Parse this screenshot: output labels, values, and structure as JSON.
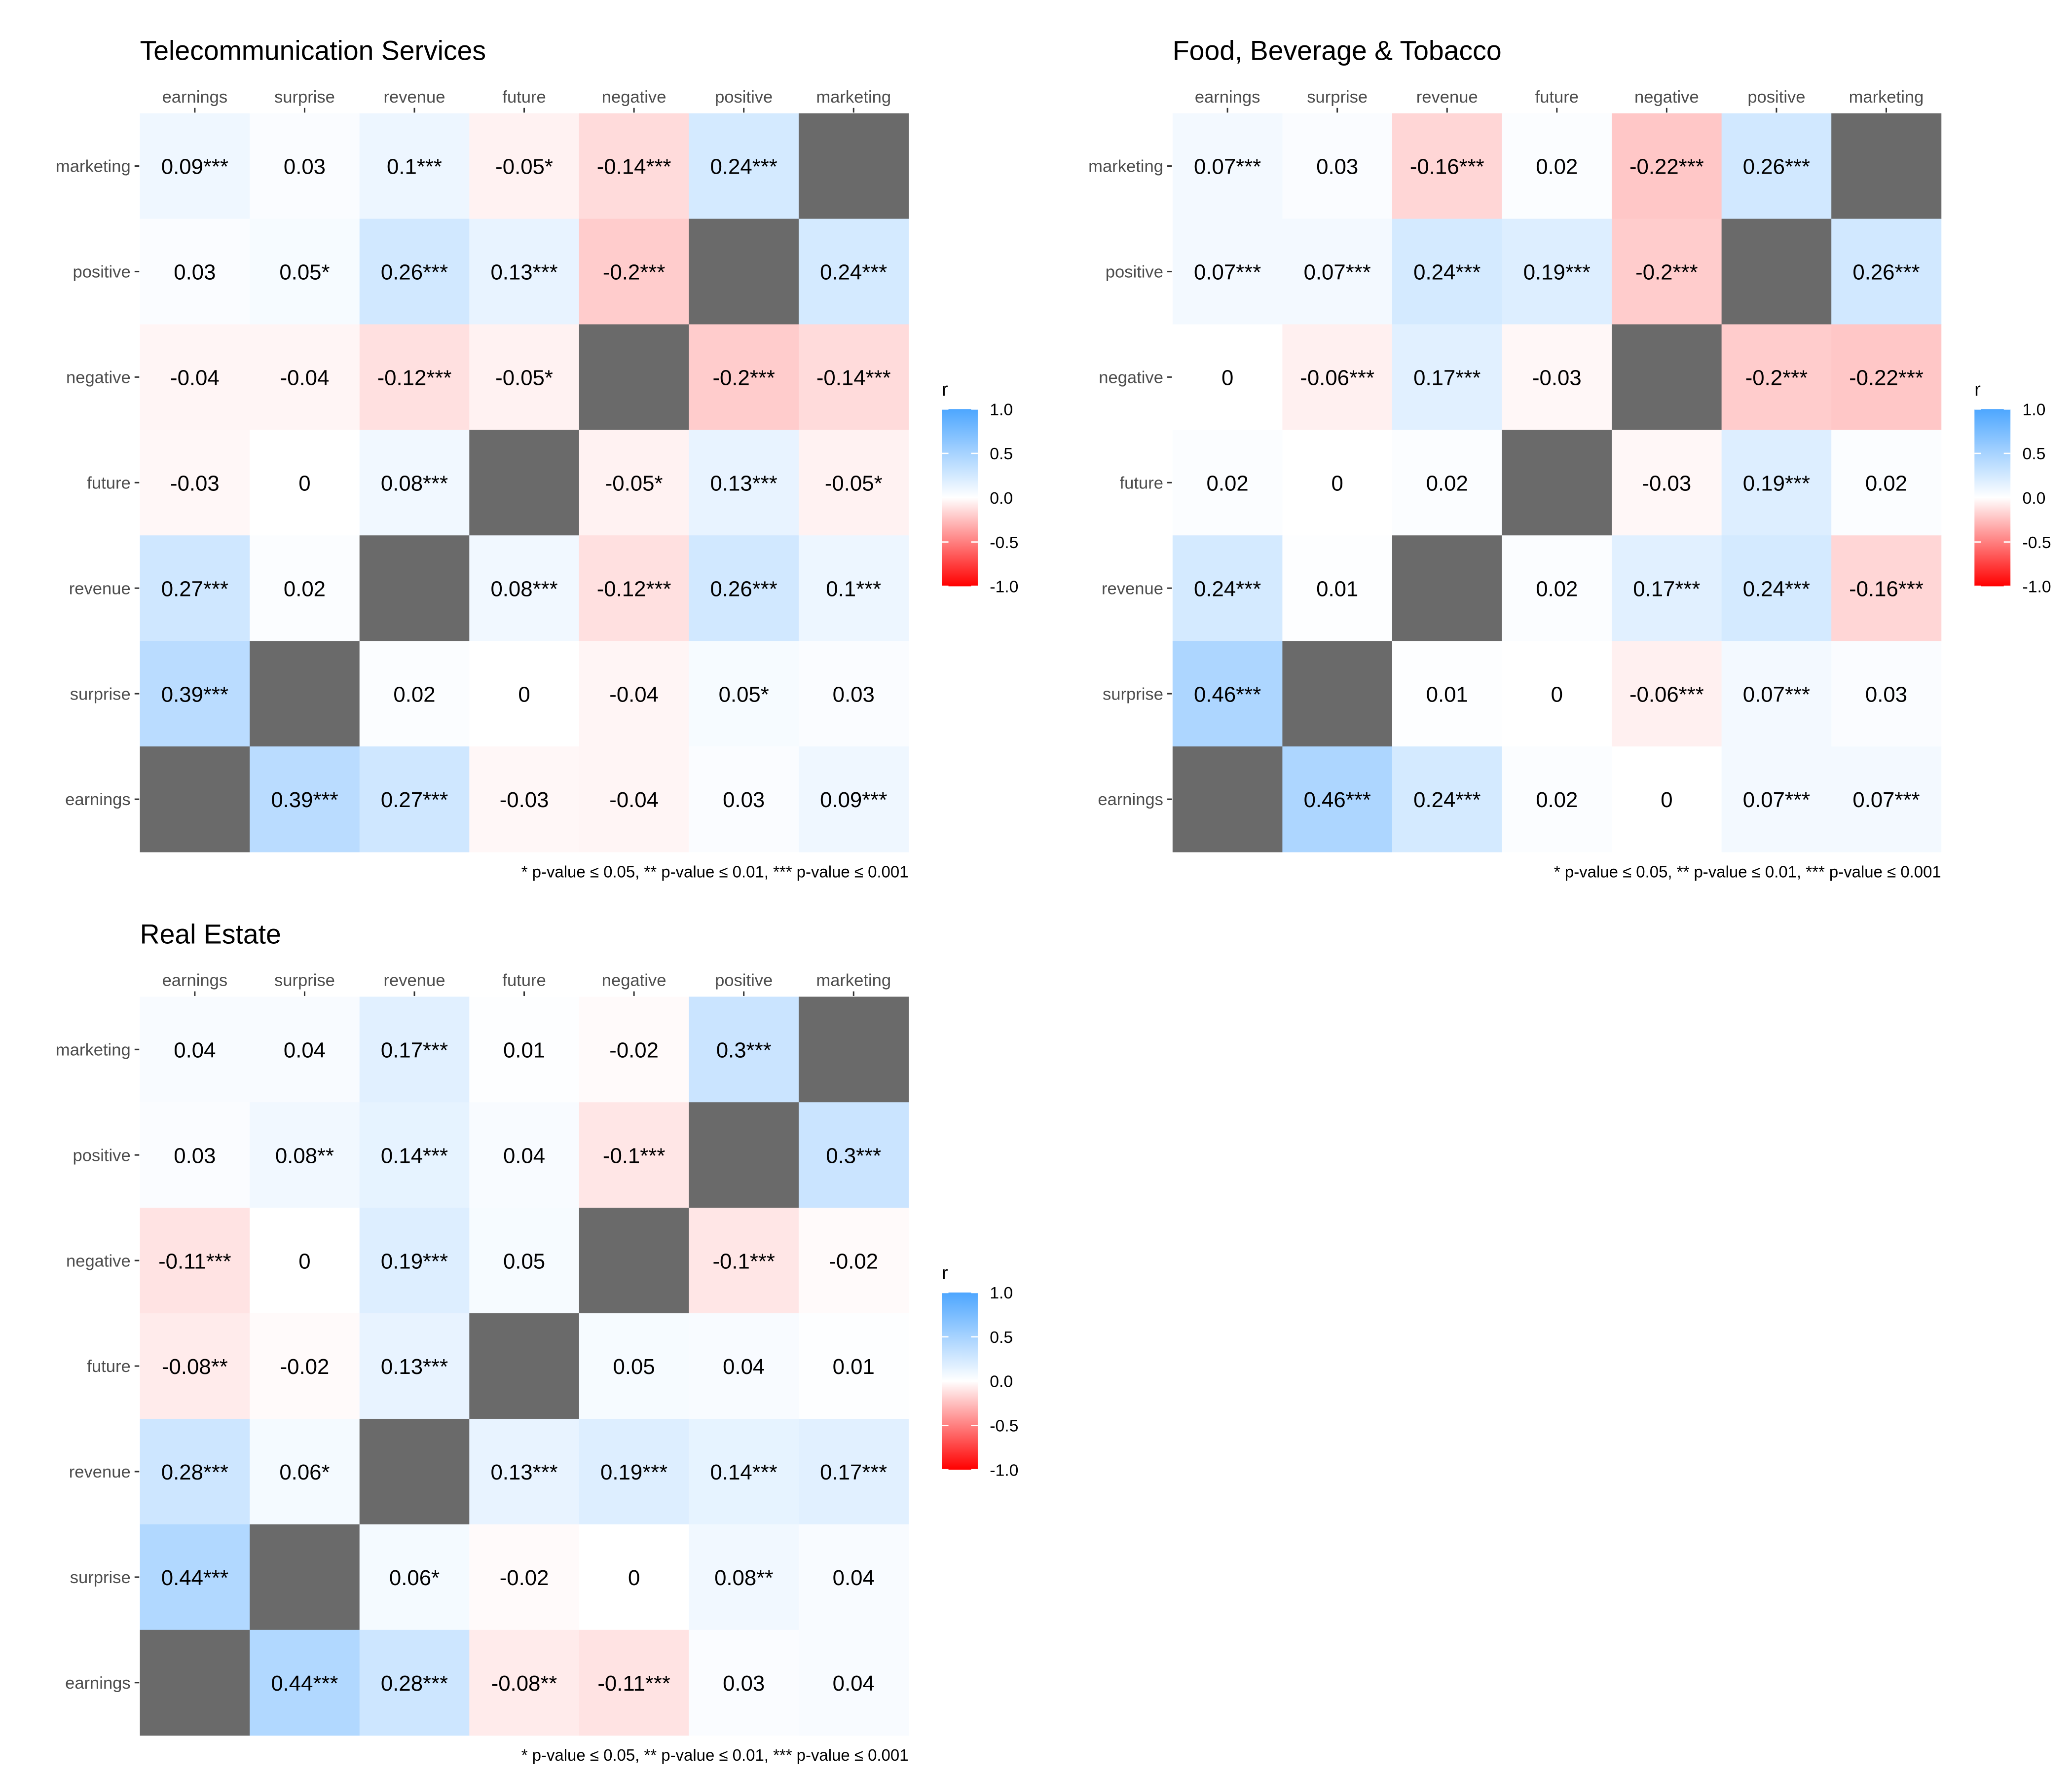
{
  "chart_data": [
    {
      "type": "heatmap",
      "title": "Telecommunication Services",
      "columns": [
        "earnings",
        "surprise",
        "revenue",
        "future",
        "negative",
        "positive",
        "marketing"
      ],
      "rows": [
        "marketing",
        "positive",
        "negative",
        "future",
        "revenue",
        "surprise",
        "earnings"
      ],
      "values": [
        [
          0.09,
          0.03,
          0.1,
          -0.05,
          -0.14,
          0.24,
          null
        ],
        [
          0.03,
          0.05,
          0.26,
          0.13,
          -0.2,
          null,
          0.24
        ],
        [
          -0.04,
          -0.04,
          -0.12,
          -0.05,
          null,
          -0.2,
          -0.14
        ],
        [
          -0.03,
          0,
          0.08,
          null,
          -0.05,
          0.13,
          -0.05
        ],
        [
          0.27,
          0.02,
          null,
          0.08,
          -0.12,
          0.26,
          0.1
        ],
        [
          0.39,
          null,
          0.02,
          0,
          -0.04,
          0.05,
          0.03
        ],
        [
          null,
          0.39,
          0.27,
          -0.03,
          -0.04,
          0.03,
          0.09
        ]
      ],
      "labels": [
        [
          "0.09***",
          "0.03",
          "0.1***",
          "-0.05*",
          "-0.14***",
          "0.24***",
          ""
        ],
        [
          "0.03",
          "0.05*",
          "0.26***",
          "0.13***",
          "-0.2***",
          "",
          "0.24***"
        ],
        [
          "-0.04",
          "-0.04",
          "-0.12***",
          "-0.05*",
          "",
          "-0.2***",
          "-0.14***"
        ],
        [
          "-0.03",
          "0",
          "0.08***",
          "",
          "-0.05*",
          "0.13***",
          "-0.05*"
        ],
        [
          "0.27***",
          "0.02",
          "",
          "0.08***",
          "-0.12***",
          "0.26***",
          "0.1***"
        ],
        [
          "0.39***",
          "",
          "0.02",
          "0",
          "-0.04",
          "0.05*",
          "0.03"
        ],
        [
          "",
          "0.39***",
          "0.27***",
          "-0.03",
          "-0.04",
          "0.03",
          "0.09***"
        ]
      ],
      "caption": "* p-value  ≤  0.05, ** p-value  ≤  0.01, *** p-value  ≤  0.001",
      "legend": {
        "title": "r",
        "ticks": [
          "1.0",
          "0.5",
          "0.0",
          "-0.5",
          "-1.0"
        ],
        "range": [
          -1,
          1
        ],
        "placement": "right"
      },
      "colors": {
        "positive": "#4da6ff",
        "zero": "#ffffff",
        "negative": "#ff0000",
        "diagonal": "#6a6a6a"
      }
    },
    {
      "type": "heatmap",
      "title": "Food, Beverage & Tobacco",
      "columns": [
        "earnings",
        "surprise",
        "revenue",
        "future",
        "negative",
        "positive",
        "marketing"
      ],
      "rows": [
        "marketing",
        "positive",
        "negative",
        "future",
        "revenue",
        "surprise",
        "earnings"
      ],
      "values": [
        [
          0.07,
          0.03,
          -0.16,
          0.02,
          -0.22,
          0.26,
          null
        ],
        [
          0.07,
          0.07,
          0.24,
          0.19,
          -0.2,
          null,
          0.26
        ],
        [
          0,
          -0.06,
          0.17,
          -0.03,
          null,
          -0.2,
          -0.22
        ],
        [
          0.02,
          0,
          0.02,
          null,
          -0.03,
          0.19,
          0.02
        ],
        [
          0.24,
          0.01,
          null,
          0.02,
          0.17,
          0.24,
          -0.16
        ],
        [
          0.46,
          null,
          0.01,
          0,
          -0.06,
          0.07,
          0.03
        ],
        [
          null,
          0.46,
          0.24,
          0.02,
          0,
          0.07,
          0.07
        ]
      ],
      "labels": [
        [
          "0.07***",
          "0.03",
          "-0.16***",
          "0.02",
          "-0.22***",
          "0.26***",
          ""
        ],
        [
          "0.07***",
          "0.07***",
          "0.24***",
          "0.19***",
          "-0.2***",
          "",
          "0.26***"
        ],
        [
          "0",
          "-0.06***",
          "0.17***",
          "-0.03",
          "",
          "-0.2***",
          "-0.22***"
        ],
        [
          "0.02",
          "0",
          "0.02",
          "",
          "-0.03",
          "0.19***",
          "0.02"
        ],
        [
          "0.24***",
          "0.01",
          "",
          "0.02",
          "0.17***",
          "0.24***",
          "-0.16***"
        ],
        [
          "0.46***",
          "",
          "0.01",
          "0",
          "-0.06***",
          "0.07***",
          "0.03"
        ],
        [
          "",
          "0.46***",
          "0.24***",
          "0.02",
          "0",
          "0.07***",
          "0.07***"
        ]
      ],
      "caption": "* p-value  ≤  0.05, ** p-value  ≤  0.01, *** p-value  ≤  0.001",
      "legend": {
        "title": "r",
        "ticks": [
          "1.0",
          "0.5",
          "0.0",
          "-0.5",
          "-1.0"
        ],
        "range": [
          -1,
          1
        ],
        "placement": "right"
      },
      "colors": {
        "positive": "#4da6ff",
        "zero": "#ffffff",
        "negative": "#ff0000",
        "diagonal": "#6a6a6a"
      }
    },
    {
      "type": "heatmap",
      "title": "Real Estate",
      "columns": [
        "earnings",
        "surprise",
        "revenue",
        "future",
        "negative",
        "positive",
        "marketing"
      ],
      "rows": [
        "marketing",
        "positive",
        "negative",
        "future",
        "revenue",
        "surprise",
        "earnings"
      ],
      "values": [
        [
          0.04,
          0.04,
          0.17,
          0.01,
          -0.02,
          0.3,
          null
        ],
        [
          0.03,
          0.08,
          0.14,
          0.04,
          -0.1,
          null,
          0.3
        ],
        [
          -0.11,
          0,
          0.19,
          0.05,
          null,
          -0.1,
          -0.02
        ],
        [
          -0.08,
          -0.02,
          0.13,
          null,
          0.05,
          0.04,
          0.01
        ],
        [
          0.28,
          0.06,
          null,
          0.13,
          0.19,
          0.14,
          0.17
        ],
        [
          0.44,
          null,
          0.06,
          -0.02,
          0,
          0.08,
          0.04
        ],
        [
          null,
          0.44,
          0.28,
          -0.08,
          -0.11,
          0.03,
          0.04
        ]
      ],
      "labels": [
        [
          "0.04",
          "0.04",
          "0.17***",
          "0.01",
          "-0.02",
          "0.3***",
          ""
        ],
        [
          "0.03",
          "0.08**",
          "0.14***",
          "0.04",
          "-0.1***",
          "",
          "0.3***"
        ],
        [
          "-0.11***",
          "0",
          "0.19***",
          "0.05",
          "",
          "-0.1***",
          "-0.02"
        ],
        [
          "-0.08**",
          "-0.02",
          "0.13***",
          "",
          "0.05",
          "0.04",
          "0.01"
        ],
        [
          "0.28***",
          "0.06*",
          "",
          "0.13***",
          "0.19***",
          "0.14***",
          "0.17***"
        ],
        [
          "0.44***",
          "",
          "0.06*",
          "-0.02",
          "0",
          "0.08**",
          "0.04"
        ],
        [
          "",
          "0.44***",
          "0.28***",
          "-0.08**",
          "-0.11***",
          "0.03",
          "0.04"
        ]
      ],
      "caption": "* p-value  ≤  0.05, ** p-value  ≤  0.01, *** p-value  ≤  0.001",
      "legend": {
        "title": "r",
        "ticks": [
          "1.0",
          "0.5",
          "0.0",
          "-0.5",
          "-1.0"
        ],
        "range": [
          -1,
          1
        ],
        "placement": "right"
      },
      "colors": {
        "positive": "#4da6ff",
        "zero": "#ffffff",
        "negative": "#ff0000",
        "diagonal": "#6a6a6a"
      }
    }
  ]
}
